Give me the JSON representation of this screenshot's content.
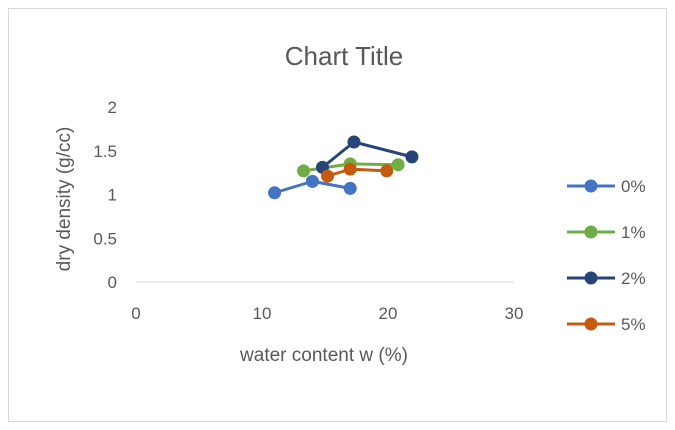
{
  "chart_data": {
    "type": "scatter",
    "title": "Chart Title",
    "xlabel": "water content w (%)",
    "ylabel": "dry density (g/cc)",
    "xlim": [
      0,
      30
    ],
    "ylim": [
      0,
      2
    ],
    "xticks": [
      0,
      10,
      20,
      30
    ],
    "yticks": [
      0,
      0.5,
      1,
      1.5,
      2
    ],
    "xtick_labels": [
      "0",
      "10",
      "20",
      "30"
    ],
    "ytick_labels": [
      "0",
      "0.5",
      "1",
      "1.5",
      "2"
    ],
    "grid": false,
    "legend_position": "right",
    "series": [
      {
        "name": "0%",
        "color": "#4472c4",
        "points": [
          [
            11,
            1.02
          ],
          [
            14,
            1.15
          ],
          [
            17,
            1.07
          ]
        ]
      },
      {
        "name": "1%",
        "color": "#70ad47",
        "points": [
          [
            13.3,
            1.27
          ],
          [
            17,
            1.35
          ],
          [
            20.8,
            1.34
          ]
        ]
      },
      {
        "name": "2%",
        "color": "#264478",
        "points": [
          [
            14.8,
            1.31
          ],
          [
            17.3,
            1.6
          ],
          [
            21.9,
            1.43
          ]
        ]
      },
      {
        "name": "5%",
        "color": "#c55a11",
        "points": [
          [
            15.2,
            1.21
          ],
          [
            17,
            1.29
          ],
          [
            19.9,
            1.27
          ]
        ]
      }
    ]
  }
}
